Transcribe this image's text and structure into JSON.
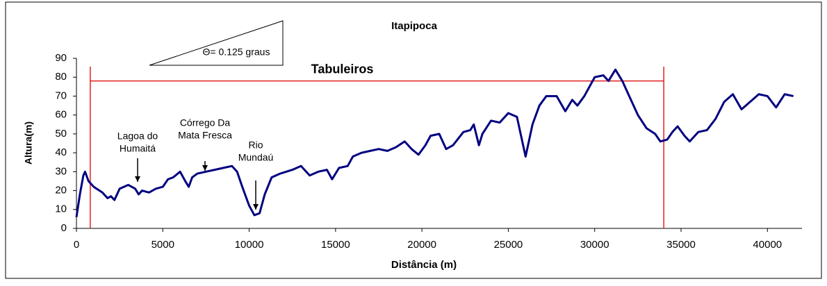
{
  "chart_data": {
    "type": "line",
    "title": "Itapipoca",
    "xlabel": "Distância (m)",
    "ylabel": "Altura(m)",
    "x": [
      0,
      200,
      400,
      500,
      700,
      1000,
      1500,
      1800,
      2000,
      2200,
      2500,
      3000,
      3400,
      3600,
      3800,
      4200,
      4600,
      5000,
      5300,
      5600,
      6000,
      6300,
      6500,
      6700,
      7000,
      7500,
      8000,
      8500,
      9000,
      9300,
      9600,
      10000,
      10300,
      10600,
      10900,
      11300,
      11800,
      12500,
      13000,
      13500,
      14000,
      14500,
      14800,
      15200,
      15700,
      16000,
      16500,
      17000,
      17500,
      18000,
      18500,
      19000,
      19400,
      19800,
      20200,
      20500,
      21000,
      21400,
      21800,
      22400,
      22800,
      23000,
      23300,
      23500,
      24000,
      24500,
      25000,
      25500,
      26000,
      26400,
      26800,
      27200,
      27800,
      28300,
      28700,
      29000,
      29400,
      30000,
      30500,
      30800,
      31200,
      31600,
      32000,
      32500,
      33000,
      33500,
      33800,
      34200,
      34500,
      34800,
      35200,
      35500,
      36000,
      36500,
      37000,
      37500,
      38000,
      38500,
      39000,
      39500,
      40000,
      40500,
      41000,
      41500
    ],
    "series": [
      {
        "name": "Altura",
        "color": "#000080",
        "values": [
          6,
          18,
          28,
          30,
          25,
          22,
          19,
          16,
          17,
          15,
          21,
          23,
          21,
          18,
          20,
          19,
          21,
          22,
          26,
          27,
          30,
          25,
          22,
          27,
          29,
          30,
          31,
          32,
          33,
          30,
          22,
          12,
          7,
          8,
          18,
          27,
          29,
          31,
          33,
          28,
          30,
          31,
          26,
          32,
          33,
          38,
          40,
          41,
          42,
          41,
          43,
          46,
          42,
          39,
          44,
          49,
          50,
          42,
          44,
          51,
          52,
          55,
          44,
          50,
          57,
          56,
          61,
          59,
          38,
          55,
          65,
          70,
          70,
          62,
          68,
          65,
          70,
          80,
          81,
          78,
          84,
          78,
          70,
          60,
          53,
          50,
          46,
          47,
          51,
          54,
          49,
          46,
          51,
          52,
          58,
          67,
          71,
          63,
          67,
          71,
          70,
          64,
          71,
          70
        ]
      }
    ],
    "xlim": [
      0,
      42000
    ],
    "xticks": [
      0,
      5000,
      10000,
      15000,
      20000,
      25000,
      30000,
      35000,
      40000
    ],
    "ylim": [
      0,
      90
    ],
    "yticks": [
      0,
      10,
      20,
      30,
      40,
      50,
      60,
      70,
      80,
      90
    ],
    "region": {
      "label": "Tabuleiros",
      "x": [
        800,
        34000
      ],
      "y": 78,
      "color": "#e02020"
    },
    "angle_label": "Θ= 0.125 graus",
    "annotations": [
      {
        "lines": [
          "Lagoa do",
          "Humaitá"
        ]
      },
      {
        "lines": [
          "Córrego Da",
          "Mata Fresca"
        ]
      },
      {
        "lines": [
          "Rio",
          "Mundaú"
        ]
      }
    ]
  }
}
